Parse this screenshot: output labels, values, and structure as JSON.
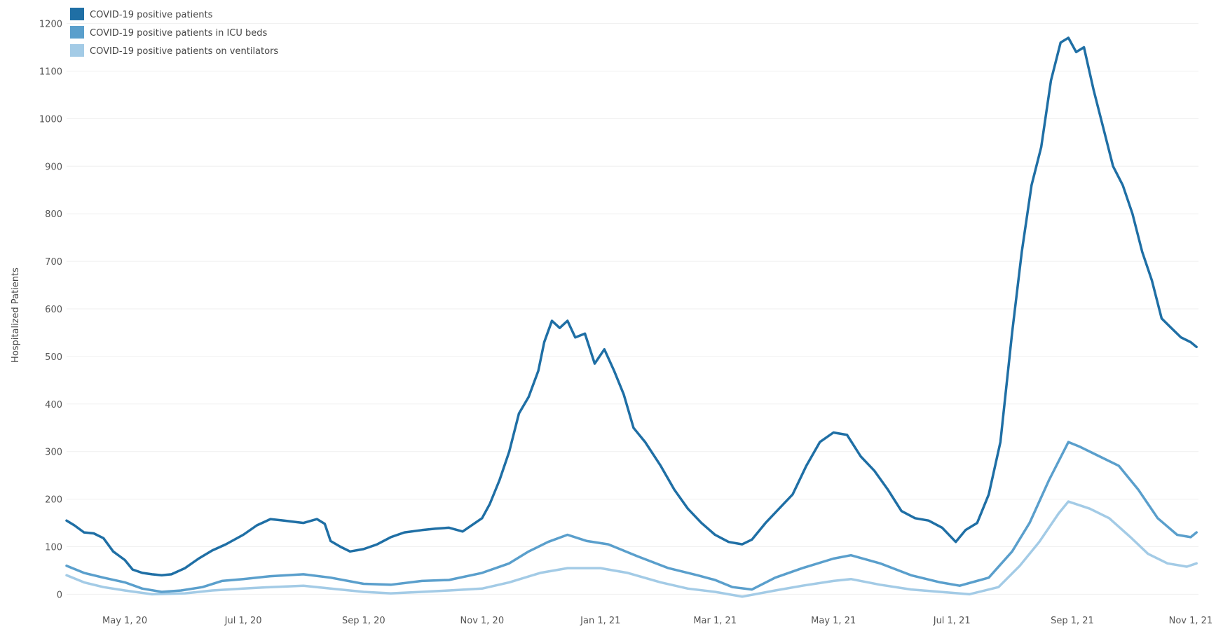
{
  "chart_data": {
    "type": "line",
    "title": "",
    "xlabel": "",
    "ylabel": "Hospitalized Patients",
    "ylim": [
      -20,
      1220
    ],
    "x_range": [
      "2020-04-01",
      "2021-11-05"
    ],
    "y_ticks": [
      0,
      100,
      200,
      300,
      400,
      500,
      600,
      700,
      800,
      900,
      1000,
      1100,
      1200
    ],
    "x_ticks": [
      {
        "date": "2020-05-01",
        "label": "May 1, 20"
      },
      {
        "date": "2020-07-01",
        "label": "Jul 1, 20"
      },
      {
        "date": "2020-09-01",
        "label": "Sep 1, 20"
      },
      {
        "date": "2020-11-01",
        "label": "Nov 1, 20"
      },
      {
        "date": "2021-01-01",
        "label": "Jan 1, 21"
      },
      {
        "date": "2021-03-01",
        "label": "Mar 1, 21"
      },
      {
        "date": "2021-05-01",
        "label": "May 1, 21"
      },
      {
        "date": "2021-07-01",
        "label": "Jul 1, 21"
      },
      {
        "date": "2021-09-01",
        "label": "Sep 1, 21"
      },
      {
        "date": "2021-11-01",
        "label": "Nov 1, 21"
      }
    ],
    "grid": "horizontal",
    "legend_position": "top-left",
    "series": [
      {
        "name": "COVID-19 positive patients",
        "color": "#1f6fa5",
        "points": [
          [
            "2020-04-01",
            155
          ],
          [
            "2020-04-05",
            145
          ],
          [
            "2020-04-10",
            130
          ],
          [
            "2020-04-15",
            128
          ],
          [
            "2020-04-20",
            118
          ],
          [
            "2020-04-25",
            90
          ],
          [
            "2020-05-01",
            72
          ],
          [
            "2020-05-05",
            52
          ],
          [
            "2020-05-10",
            45
          ],
          [
            "2020-05-15",
            42
          ],
          [
            "2020-05-20",
            40
          ],
          [
            "2020-05-25",
            42
          ],
          [
            "2020-06-01",
            55
          ],
          [
            "2020-06-08",
            75
          ],
          [
            "2020-06-15",
            92
          ],
          [
            "2020-06-22",
            105
          ],
          [
            "2020-07-01",
            125
          ],
          [
            "2020-07-08",
            145
          ],
          [
            "2020-07-15",
            158
          ],
          [
            "2020-07-22",
            155
          ],
          [
            "2020-08-01",
            150
          ],
          [
            "2020-08-08",
            158
          ],
          [
            "2020-08-12",
            148
          ],
          [
            "2020-08-15",
            112
          ],
          [
            "2020-08-20",
            100
          ],
          [
            "2020-08-25",
            90
          ],
          [
            "2020-09-01",
            95
          ],
          [
            "2020-09-08",
            105
          ],
          [
            "2020-09-15",
            120
          ],
          [
            "2020-09-22",
            130
          ],
          [
            "2020-10-01",
            135
          ],
          [
            "2020-10-08",
            138
          ],
          [
            "2020-10-15",
            140
          ],
          [
            "2020-10-22",
            132
          ],
          [
            "2020-11-01",
            160
          ],
          [
            "2020-11-05",
            190
          ],
          [
            "2020-11-10",
            240
          ],
          [
            "2020-11-15",
            300
          ],
          [
            "2020-11-20",
            380
          ],
          [
            "2020-11-25",
            415
          ],
          [
            "2020-11-30",
            470
          ],
          [
            "2020-12-03",
            530
          ],
          [
            "2020-12-07",
            575
          ],
          [
            "2020-12-11",
            560
          ],
          [
            "2020-12-15",
            575
          ],
          [
            "2020-12-19",
            540
          ],
          [
            "2020-12-24",
            548
          ],
          [
            "2020-12-29",
            485
          ],
          [
            "2021-01-03",
            515
          ],
          [
            "2021-01-08",
            470
          ],
          [
            "2021-01-13",
            420
          ],
          [
            "2021-01-18",
            350
          ],
          [
            "2021-01-24",
            320
          ],
          [
            "2021-02-01",
            270
          ],
          [
            "2021-02-08",
            220
          ],
          [
            "2021-02-15",
            180
          ],
          [
            "2021-02-22",
            150
          ],
          [
            "2021-03-01",
            125
          ],
          [
            "2021-03-08",
            110
          ],
          [
            "2021-03-15",
            105
          ],
          [
            "2021-03-20",
            115
          ],
          [
            "2021-03-27",
            150
          ],
          [
            "2021-04-03",
            180
          ],
          [
            "2021-04-10",
            210
          ],
          [
            "2021-04-17",
            270
          ],
          [
            "2021-04-24",
            320
          ],
          [
            "2021-05-01",
            340
          ],
          [
            "2021-05-08",
            335
          ],
          [
            "2021-05-15",
            290
          ],
          [
            "2021-05-22",
            260
          ],
          [
            "2021-05-29",
            220
          ],
          [
            "2021-06-05",
            175
          ],
          [
            "2021-06-12",
            160
          ],
          [
            "2021-06-19",
            155
          ],
          [
            "2021-06-26",
            140
          ],
          [
            "2021-07-03",
            110
          ],
          [
            "2021-07-08",
            135
          ],
          [
            "2021-07-14",
            150
          ],
          [
            "2021-07-20",
            210
          ],
          [
            "2021-07-26",
            320
          ],
          [
            "2021-08-01",
            550
          ],
          [
            "2021-08-06",
            720
          ],
          [
            "2021-08-11",
            860
          ],
          [
            "2021-08-16",
            940
          ],
          [
            "2021-08-21",
            1080
          ],
          [
            "2021-08-26",
            1160
          ],
          [
            "2021-08-30",
            1170
          ],
          [
            "2021-09-03",
            1140
          ],
          [
            "2021-09-07",
            1150
          ],
          [
            "2021-09-12",
            1060
          ],
          [
            "2021-09-17",
            980
          ],
          [
            "2021-09-22",
            900
          ],
          [
            "2021-09-27",
            860
          ],
          [
            "2021-10-02",
            800
          ],
          [
            "2021-10-07",
            720
          ],
          [
            "2021-10-12",
            660
          ],
          [
            "2021-10-17",
            580
          ],
          [
            "2021-10-22",
            560
          ],
          [
            "2021-10-27",
            540
          ],
          [
            "2021-11-01",
            530
          ],
          [
            "2021-11-04",
            520
          ]
        ]
      },
      {
        "name": "COVID-19 positive patients in ICU beds",
        "color": "#5a9fcc",
        "points": [
          [
            "2020-04-01",
            60
          ],
          [
            "2020-04-10",
            45
          ],
          [
            "2020-04-20",
            35
          ],
          [
            "2020-05-01",
            25
          ],
          [
            "2020-05-10",
            12
          ],
          [
            "2020-05-20",
            5
          ],
          [
            "2020-05-30",
            8
          ],
          [
            "2020-06-10",
            15
          ],
          [
            "2020-06-20",
            28
          ],
          [
            "2020-07-01",
            32
          ],
          [
            "2020-07-15",
            38
          ],
          [
            "2020-08-01",
            42
          ],
          [
            "2020-08-15",
            35
          ],
          [
            "2020-09-01",
            22
          ],
          [
            "2020-09-15",
            20
          ],
          [
            "2020-10-01",
            28
          ],
          [
            "2020-10-15",
            30
          ],
          [
            "2020-11-01",
            45
          ],
          [
            "2020-11-15",
            65
          ],
          [
            "2020-11-25",
            90
          ],
          [
            "2020-12-05",
            110
          ],
          [
            "2020-12-15",
            125
          ],
          [
            "2020-12-25",
            112
          ],
          [
            "2021-01-05",
            105
          ],
          [
            "2021-01-20",
            80
          ],
          [
            "2021-02-05",
            55
          ],
          [
            "2021-02-20",
            40
          ],
          [
            "2021-03-01",
            30
          ],
          [
            "2021-03-10",
            15
          ],
          [
            "2021-03-20",
            10
          ],
          [
            "2021-04-01",
            35
          ],
          [
            "2021-04-15",
            55
          ],
          [
            "2021-05-01",
            75
          ],
          [
            "2021-05-10",
            82
          ],
          [
            "2021-05-25",
            65
          ],
          [
            "2021-06-10",
            40
          ],
          [
            "2021-06-25",
            25
          ],
          [
            "2021-07-05",
            18
          ],
          [
            "2021-07-20",
            35
          ],
          [
            "2021-08-01",
            90
          ],
          [
            "2021-08-10",
            150
          ],
          [
            "2021-08-20",
            240
          ],
          [
            "2021-08-30",
            320
          ],
          [
            "2021-09-05",
            310
          ],
          [
            "2021-09-15",
            290
          ],
          [
            "2021-09-25",
            270
          ],
          [
            "2021-10-05",
            220
          ],
          [
            "2021-10-15",
            160
          ],
          [
            "2021-10-25",
            125
          ],
          [
            "2021-11-01",
            120
          ],
          [
            "2021-11-04",
            130
          ]
        ]
      },
      {
        "name": "COVID-19 positive patients on ventilators",
        "color": "#a3cbe6",
        "points": [
          [
            "2020-04-01",
            40
          ],
          [
            "2020-04-10",
            25
          ],
          [
            "2020-04-20",
            15
          ],
          [
            "2020-05-01",
            8
          ],
          [
            "2020-05-15",
            0
          ],
          [
            "2020-06-01",
            2
          ],
          [
            "2020-06-15",
            8
          ],
          [
            "2020-07-01",
            12
          ],
          [
            "2020-07-15",
            15
          ],
          [
            "2020-08-01",
            18
          ],
          [
            "2020-08-15",
            12
          ],
          [
            "2020-09-01",
            5
          ],
          [
            "2020-09-15",
            2
          ],
          [
            "2020-10-01",
            5
          ],
          [
            "2020-10-15",
            8
          ],
          [
            "2020-11-01",
            12
          ],
          [
            "2020-11-15",
            25
          ],
          [
            "2020-12-01",
            45
          ],
          [
            "2020-12-15",
            55
          ],
          [
            "2021-01-01",
            55
          ],
          [
            "2021-01-15",
            45
          ],
          [
            "2021-02-01",
            25
          ],
          [
            "2021-02-15",
            12
          ],
          [
            "2021-03-01",
            5
          ],
          [
            "2021-03-15",
            -5
          ],
          [
            "2021-04-01",
            8
          ],
          [
            "2021-04-15",
            18
          ],
          [
            "2021-05-01",
            28
          ],
          [
            "2021-05-10",
            32
          ],
          [
            "2021-05-25",
            20
          ],
          [
            "2021-06-10",
            10
          ],
          [
            "2021-06-25",
            5
          ],
          [
            "2021-07-10",
            0
          ],
          [
            "2021-07-25",
            15
          ],
          [
            "2021-08-05",
            60
          ],
          [
            "2021-08-15",
            110
          ],
          [
            "2021-08-25",
            170
          ],
          [
            "2021-08-30",
            195
          ],
          [
            "2021-09-10",
            180
          ],
          [
            "2021-09-20",
            160
          ],
          [
            "2021-10-01",
            120
          ],
          [
            "2021-10-10",
            85
          ],
          [
            "2021-10-20",
            65
          ],
          [
            "2021-10-30",
            58
          ],
          [
            "2021-11-04",
            65
          ]
        ]
      }
    ]
  }
}
